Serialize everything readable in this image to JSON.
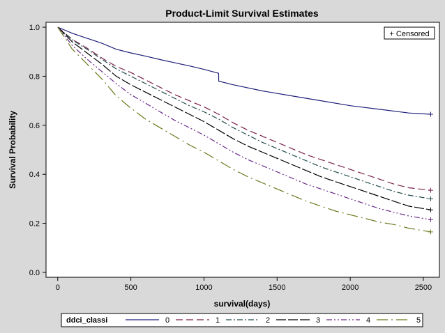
{
  "chart_data": {
    "type": "line",
    "title": "Product-Limit Survival Estimates",
    "xlabel": "survival(days)",
    "ylabel": "Survival Probability",
    "xlim": [
      -80,
      2610
    ],
    "ylim": [
      -0.02,
      1.02
    ],
    "xticks": [
      0,
      500,
      1000,
      1500,
      2000,
      2500
    ],
    "yticks": [
      0.0,
      0.2,
      0.4,
      0.6,
      0.8,
      1.0
    ],
    "ytick_labels": [
      "0.0",
      "0.2",
      "0.4",
      "0.6",
      "0.8",
      "1.0"
    ],
    "censored_label": "+ Censored",
    "legend_title": "ddci_classi",
    "legend_position": "bottom",
    "series": [
      {
        "name": "0",
        "color": "#1f1f7a",
        "dash": "",
        "points": [
          [
            0,
            1.0
          ],
          [
            100,
            0.975
          ],
          [
            200,
            0.955
          ],
          [
            300,
            0.935
          ],
          [
            400,
            0.91
          ],
          [
            500,
            0.895
          ],
          [
            600,
            0.882
          ],
          [
            700,
            0.868
          ],
          [
            800,
            0.855
          ],
          [
            900,
            0.842
          ],
          [
            1000,
            0.828
          ],
          [
            1100,
            0.812
          ],
          [
            1101,
            0.78
          ],
          [
            1200,
            0.765
          ],
          [
            1400,
            0.74
          ],
          [
            1600,
            0.72
          ],
          [
            1800,
            0.7
          ],
          [
            2000,
            0.68
          ],
          [
            2200,
            0.665
          ],
          [
            2400,
            0.65
          ],
          [
            2550,
            0.645
          ]
        ],
        "censor": [
          [
            2550,
            0.645
          ]
        ]
      },
      {
        "name": "1",
        "color": "#7a1f4a",
        "dash": "10,5",
        "points": [
          [
            0,
            1.0
          ],
          [
            100,
            0.95
          ],
          [
            200,
            0.915
          ],
          [
            300,
            0.875
          ],
          [
            400,
            0.84
          ],
          [
            500,
            0.815
          ],
          [
            600,
            0.785
          ],
          [
            700,
            0.755
          ],
          [
            800,
            0.725
          ],
          [
            900,
            0.7
          ],
          [
            1000,
            0.675
          ],
          [
            1100,
            0.645
          ],
          [
            1200,
            0.61
          ],
          [
            1300,
            0.58
          ],
          [
            1400,
            0.555
          ],
          [
            1500,
            0.53
          ],
          [
            1600,
            0.505
          ],
          [
            1700,
            0.48
          ],
          [
            1800,
            0.46
          ],
          [
            1900,
            0.44
          ],
          [
            2000,
            0.42
          ],
          [
            2100,
            0.4
          ],
          [
            2200,
            0.38
          ],
          [
            2300,
            0.36
          ],
          [
            2400,
            0.345
          ],
          [
            2550,
            0.335
          ]
        ],
        "censor": [
          [
            2550,
            0.335
          ]
        ]
      },
      {
        "name": "2",
        "color": "#1f4a4a",
        "dash": "8,3,2,3",
        "points": [
          [
            0,
            1.0
          ],
          [
            100,
            0.948
          ],
          [
            200,
            0.91
          ],
          [
            300,
            0.87
          ],
          [
            400,
            0.83
          ],
          [
            500,
            0.8
          ],
          [
            600,
            0.77
          ],
          [
            700,
            0.74
          ],
          [
            800,
            0.71
          ],
          [
            900,
            0.68
          ],
          [
            1000,
            0.655
          ],
          [
            1100,
            0.625
          ],
          [
            1200,
            0.59
          ],
          [
            1300,
            0.56
          ],
          [
            1400,
            0.53
          ],
          [
            1500,
            0.505
          ],
          [
            1600,
            0.48
          ],
          [
            1700,
            0.455
          ],
          [
            1800,
            0.43
          ],
          [
            1900,
            0.41
          ],
          [
            2000,
            0.39
          ],
          [
            2100,
            0.37
          ],
          [
            2200,
            0.35
          ],
          [
            2300,
            0.33
          ],
          [
            2400,
            0.315
          ],
          [
            2550,
            0.3
          ]
        ],
        "censor": [
          [
            2550,
            0.3
          ]
        ]
      },
      {
        "name": "3",
        "color": "#000000",
        "dash": "14,3",
        "points": [
          [
            0,
            1.0
          ],
          [
            100,
            0.94
          ],
          [
            200,
            0.895
          ],
          [
            300,
            0.85
          ],
          [
            400,
            0.8
          ],
          [
            500,
            0.765
          ],
          [
            600,
            0.735
          ],
          [
            700,
            0.705
          ],
          [
            800,
            0.675
          ],
          [
            900,
            0.645
          ],
          [
            1000,
            0.615
          ],
          [
            1100,
            0.58
          ],
          [
            1200,
            0.545
          ],
          [
            1300,
            0.515
          ],
          [
            1400,
            0.49
          ],
          [
            1500,
            0.465
          ],
          [
            1600,
            0.44
          ],
          [
            1700,
            0.415
          ],
          [
            1800,
            0.39
          ],
          [
            1900,
            0.37
          ],
          [
            2000,
            0.35
          ],
          [
            2100,
            0.33
          ],
          [
            2200,
            0.31
          ],
          [
            2300,
            0.29
          ],
          [
            2400,
            0.27
          ],
          [
            2550,
            0.255
          ]
        ],
        "censor": [
          [
            2550,
            0.255
          ]
        ]
      },
      {
        "name": "4",
        "color": "#6a2a8a",
        "dash": "8,3,2,3,2,3",
        "points": [
          [
            0,
            1.0
          ],
          [
            100,
            0.925
          ],
          [
            200,
            0.87
          ],
          [
            300,
            0.82
          ],
          [
            400,
            0.77
          ],
          [
            500,
            0.725
          ],
          [
            600,
            0.69
          ],
          [
            700,
            0.655
          ],
          [
            800,
            0.62
          ],
          [
            900,
            0.59
          ],
          [
            1000,
            0.56
          ],
          [
            1100,
            0.525
          ],
          [
            1200,
            0.49
          ],
          [
            1300,
            0.46
          ],
          [
            1400,
            0.435
          ],
          [
            1500,
            0.41
          ],
          [
            1600,
            0.385
          ],
          [
            1700,
            0.36
          ],
          [
            1800,
            0.34
          ],
          [
            1900,
            0.32
          ],
          [
            2000,
            0.3
          ],
          [
            2100,
            0.28
          ],
          [
            2200,
            0.26
          ],
          [
            2300,
            0.245
          ],
          [
            2400,
            0.23
          ],
          [
            2550,
            0.215
          ]
        ],
        "censor": [
          [
            2550,
            0.215
          ]
        ]
      },
      {
        "name": "5",
        "color": "#6a7a1f",
        "dash": "16,5,2,5",
        "points": [
          [
            0,
            1.0
          ],
          [
            100,
            0.91
          ],
          [
            200,
            0.85
          ],
          [
            300,
            0.79
          ],
          [
            400,
            0.72
          ],
          [
            500,
            0.67
          ],
          [
            600,
            0.625
          ],
          [
            700,
            0.59
          ],
          [
            800,
            0.555
          ],
          [
            900,
            0.52
          ],
          [
            1000,
            0.49
          ],
          [
            1100,
            0.455
          ],
          [
            1200,
            0.42
          ],
          [
            1300,
            0.39
          ],
          [
            1400,
            0.365
          ],
          [
            1500,
            0.34
          ],
          [
            1600,
            0.315
          ],
          [
            1700,
            0.29
          ],
          [
            1800,
            0.27
          ],
          [
            1900,
            0.25
          ],
          [
            2000,
            0.235
          ],
          [
            2100,
            0.22
          ],
          [
            2200,
            0.205
          ],
          [
            2300,
            0.195
          ],
          [
            2400,
            0.18
          ],
          [
            2550,
            0.165
          ]
        ],
        "censor": [
          [
            2550,
            0.165
          ]
        ]
      }
    ]
  }
}
